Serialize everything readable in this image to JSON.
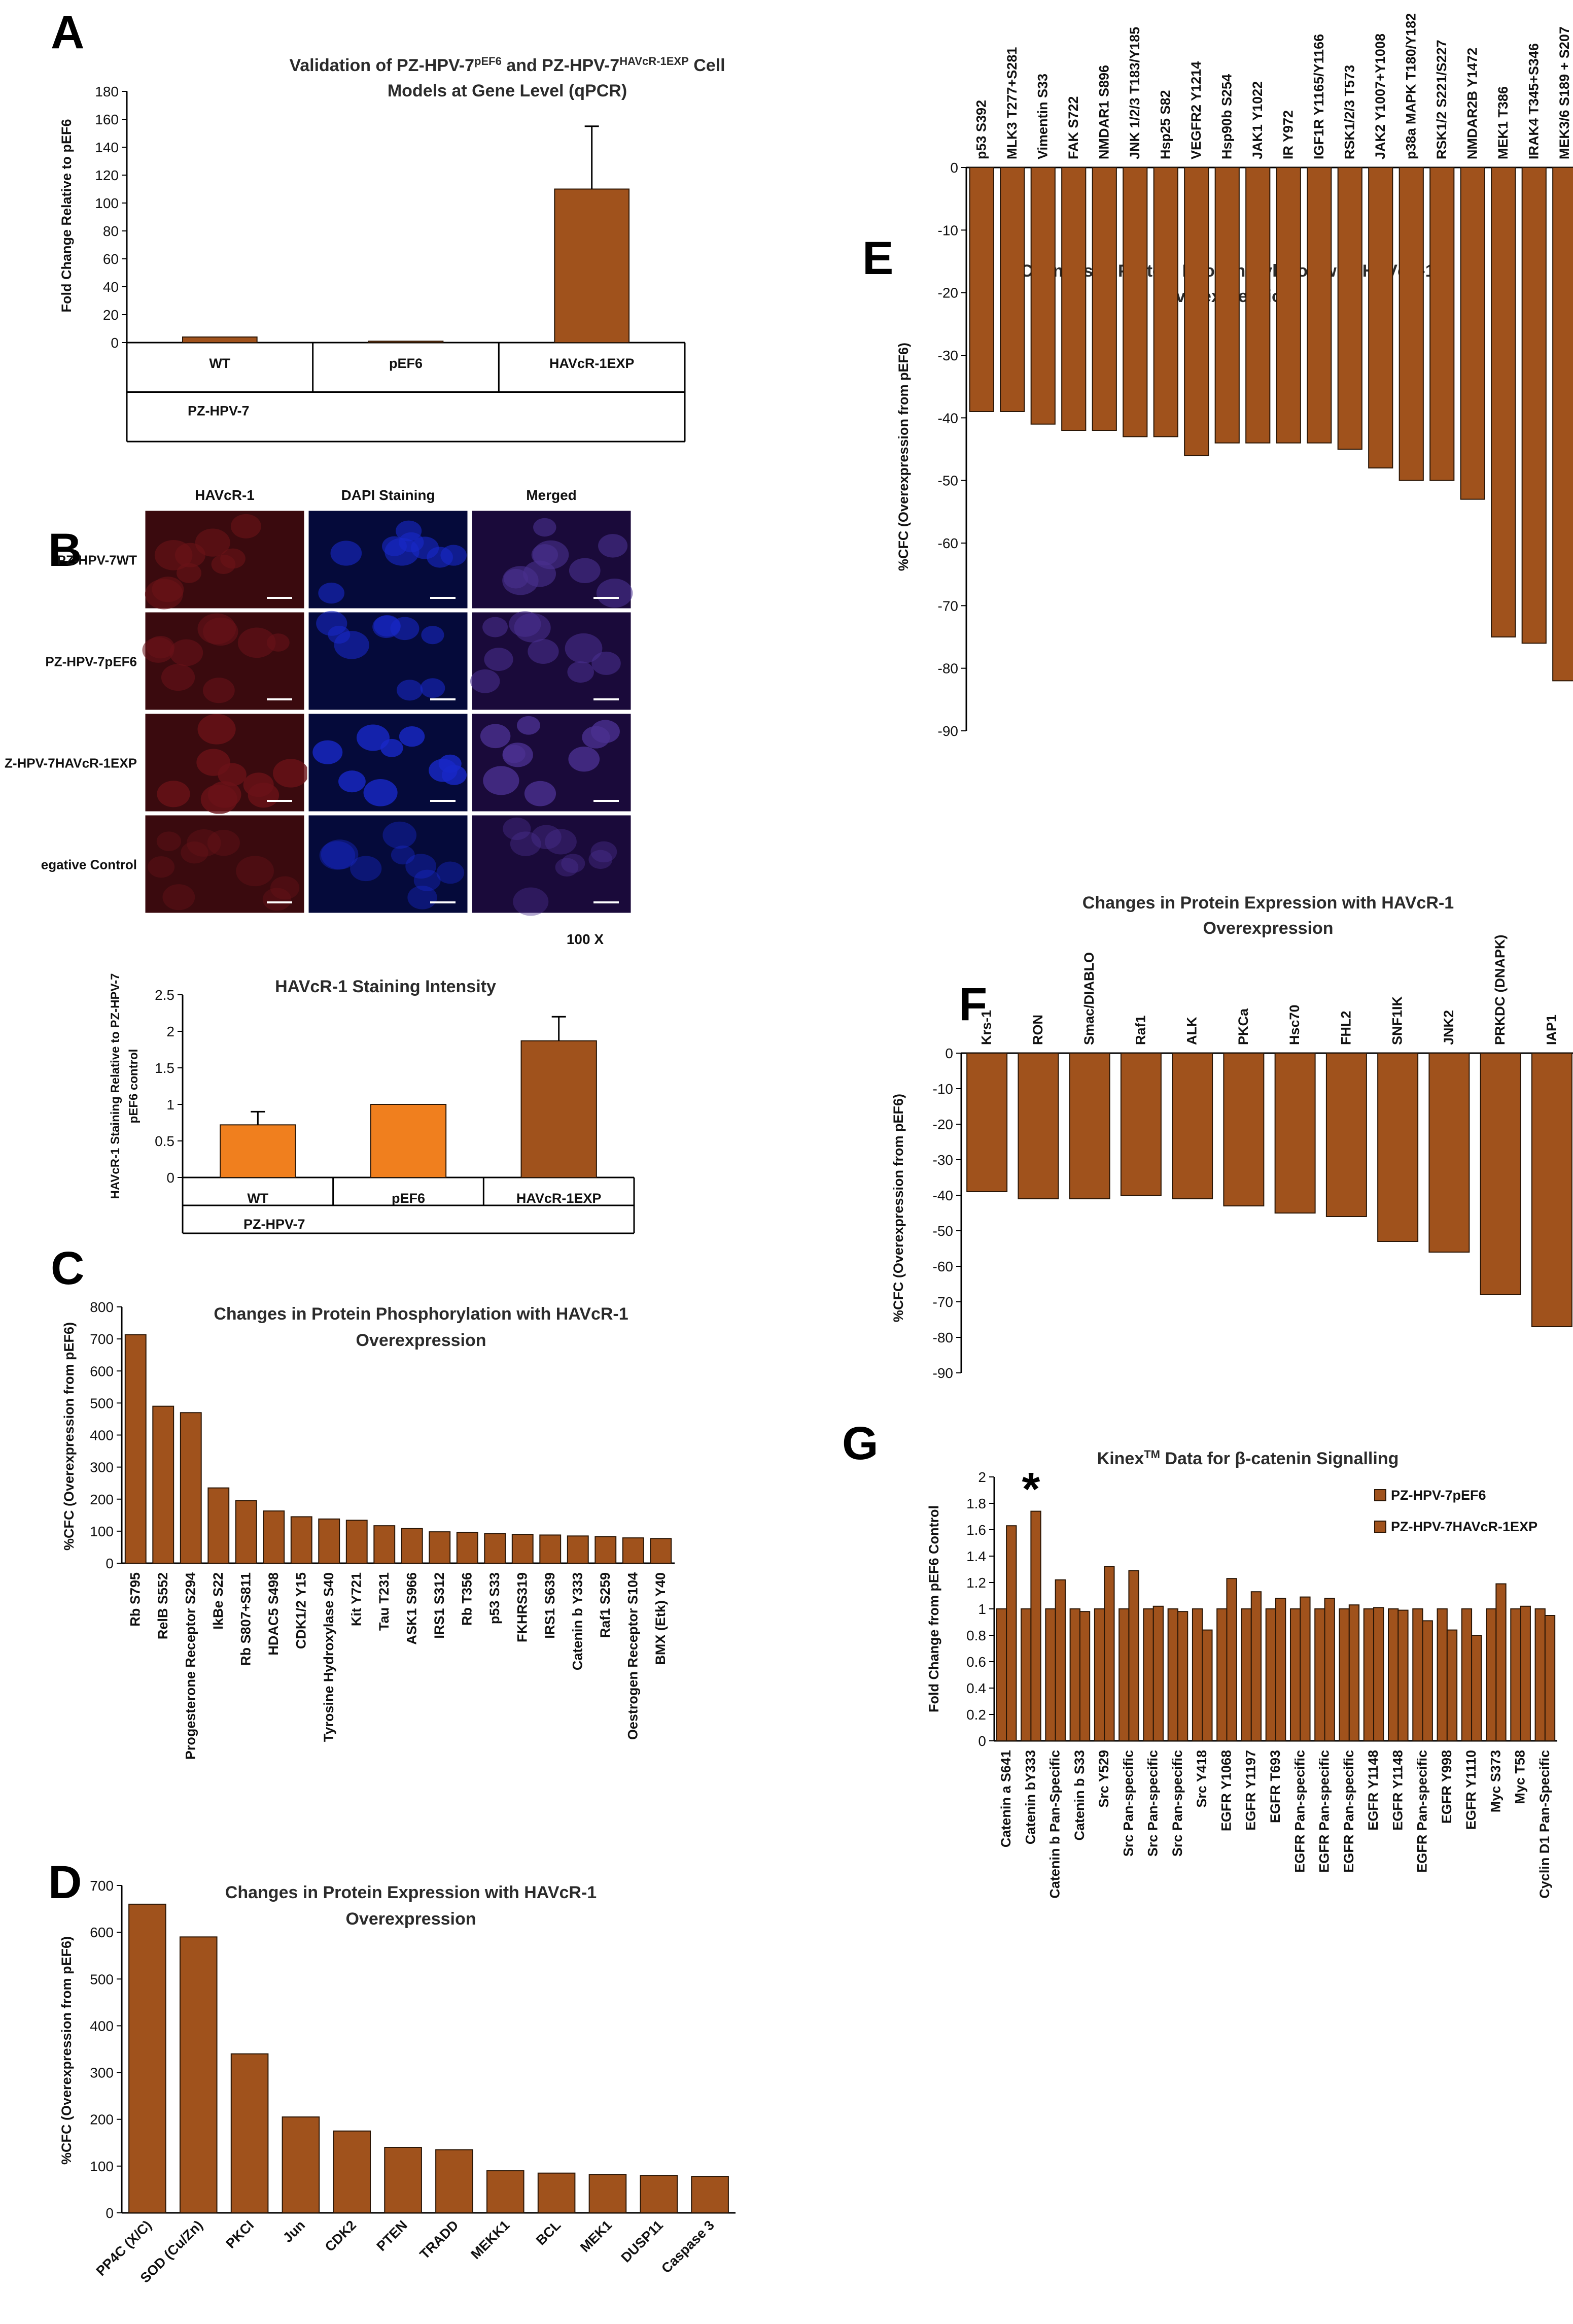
{
  "figure_labels": [
    "A",
    "B",
    "C",
    "D",
    "E",
    "F",
    "G"
  ],
  "colors": {
    "bar": "#a0521c",
    "bar_light": "#f07f1e",
    "edge": "#2a1606"
  },
  "micro": {
    "columns": [
      "HAVcR-1",
      "DAPI Staining",
      "Merged"
    ],
    "rows": [
      "PZ-HPV-7WT",
      "PZ-HPV-7pEF6",
      "Z-HPV-7HAVcR-1EXP",
      "egative Control"
    ],
    "magnification": "100 X"
  },
  "chart_data": [
    {
      "id": "A",
      "type": "bar",
      "title": [
        "Validation of PZ-HPV-7pEF6 and PZ-HPV-7HAVcR-1EXP Cell",
        "Models at Gene Level (qPCR)"
      ],
      "categories": [
        "WT",
        "pEF6",
        "HAVcR-1EXP"
      ],
      "group_label": "PZ-HPV-7",
      "values": [
        4,
        1,
        110
      ],
      "errors": [
        0,
        0,
        45
      ],
      "ylabel": "Fold Change Relative to pEF6",
      "ylim": [
        0,
        180
      ],
      "yticks": [
        0,
        20,
        40,
        60,
        80,
        100,
        120,
        140,
        160,
        180
      ]
    },
    {
      "id": "B",
      "type": "bar",
      "title": [
        "HAVcR-1 Staining Intensity"
      ],
      "categories": [
        "WT",
        "pEF6",
        "HAVcR-1EXP"
      ],
      "group_label": "PZ-HPV-7",
      "values": [
        0.72,
        1.0,
        1.87
      ],
      "errors": [
        0.18,
        0,
        0.33
      ],
      "ylabel": [
        "HAVcR-1 Staining Relative to PZ-HPV-7",
        "pEF6 control"
      ],
      "ylim": [
        0,
        2.5
      ],
      "yticks": [
        0,
        0.5,
        1,
        1.5,
        2,
        2.5
      ]
    },
    {
      "id": "C",
      "type": "bar",
      "title": [
        "Changes in Protein Phosphorylation with HAVcR-1",
        "Overexpression"
      ],
      "categories": [
        "Rb S795",
        "RelB S552",
        "Progesterone Receptor S294",
        "IkBe S22",
        "Rb S807+S811",
        "HDAC5 S498",
        "CDK1/2 Y15",
        "Tyrosine Hydroxylase S40",
        "Kit Y721",
        "Tau T231",
        "ASK1 S966",
        "IRS1 S312",
        "Rb T356",
        "p53 S33",
        "FKHRS319",
        "IRS1 S639",
        "Catenin b Y333",
        "Raf1 S259",
        "Oestrogen Receptor S104",
        "BMX (Etk) Y40"
      ],
      "values": [
        713,
        490,
        470,
        235,
        195,
        163,
        145,
        138,
        134,
        117,
        108,
        98,
        96,
        92,
        90,
        88,
        85,
        83,
        79,
        77
      ],
      "ylabel": "%CFC (Overexpression from pEF6)",
      "ylim": [
        0,
        800
      ],
      "yticks": [
        0,
        100,
        200,
        300,
        400,
        500,
        600,
        700,
        800
      ]
    },
    {
      "id": "D",
      "type": "bar",
      "title": [
        "Changes in Protein Expression with HAVcR-1",
        "Overexpression"
      ],
      "categories": [
        "PP4C (X/C)",
        "SOD (Cu/Zn)",
        "PKCI",
        "Jun",
        "CDK2",
        "PTEN",
        "TRADD",
        "MEKK1",
        "BCL",
        "MEK1",
        "DUSP11",
        "Caspase 3"
      ],
      "values": [
        660,
        590,
        340,
        205,
        175,
        140,
        135,
        90,
        85,
        82,
        80,
        78
      ],
      "ylabel": "%CFC (Overexpression from pEF6)",
      "ylim": [
        0,
        700
      ],
      "yticks": [
        0,
        100,
        200,
        300,
        400,
        500,
        600,
        700
      ]
    },
    {
      "id": "E",
      "type": "bar",
      "title": [
        "Changes in Protein Phosphorylation with HAVcR-1",
        "Overexpression"
      ],
      "categories": [
        "p53 S392",
        "MLK3 T277+S281",
        "Vimentin S33",
        "FAK S722",
        "NMDAR1 S896",
        "JNK 1/2/3 T183/Y185",
        "Hsp25 S82",
        "VEGFR2 Y1214",
        "Hsp90b S254",
        "JAK1 Y1022",
        "IR Y972",
        "IGF1R Y1165/Y1166",
        "RSK1/2/3 T573",
        "JAK2 Y1007+Y1008",
        "p38a MAPK T180/Y182",
        "RSK1/2 S221/S227",
        "NMDAR2B Y1472",
        "MEK1 T386",
        "IRAK4 T345+S346",
        "MEK3/6 S189 + S207"
      ],
      "values": [
        -39,
        -39,
        -41,
        -42,
        -42,
        -43,
        -43,
        -46,
        -44,
        -44,
        -44,
        -44,
        -45,
        -48,
        -50,
        -50,
        -53,
        -75,
        -76,
        -82
      ],
      "ylabel": "%CFC (Overexpression from pEF6)",
      "ylim": [
        -90,
        0
      ],
      "yticks": [
        0,
        -10,
        -20,
        -30,
        -40,
        -50,
        -60,
        -70,
        -80,
        -90
      ]
    },
    {
      "id": "F",
      "type": "bar",
      "title": [
        "Changes in Protein Expression with HAVcR-1",
        "Overexpression"
      ],
      "categories": [
        "Krs-1",
        "RON",
        "Smac/DIABLO",
        "Raf1",
        "ALK",
        "PKCa",
        "Hsc70",
        "FHL2",
        "SNF1IK",
        "JNK2",
        "PRKDC (DNAPK)",
        "IAP1"
      ],
      "values": [
        -39,
        -41,
        -41,
        -40,
        -41,
        -43,
        -45,
        -46,
        -53,
        -56,
        -68,
        -77
      ],
      "ylabel": "%CFC (Overexpression from pEF6)",
      "ylim": [
        -90,
        0
      ],
      "yticks": [
        0,
        -10,
        -20,
        -30,
        -40,
        -50,
        -60,
        -70,
        -80,
        -90
      ]
    },
    {
      "id": "G",
      "type": "bar",
      "title": [
        "KinexTM Data for β-catenin Signalling"
      ],
      "categories": [
        "Catenin a S641",
        "Catenin bY333",
        "Catenin b Pan-Specific",
        "Catenin b S33",
        "Src Y529",
        "Src Pan-specific",
        "Src Pan-specific",
        "Src Pan-specific",
        "Src Y418",
        "EGFR Y1068",
        "EGFR Y1197",
        "EGFR T693",
        "EGFR Pan-specific",
        "EGFR Pan-specific",
        "EGFR Pan-specific",
        "EGFR Y1148",
        "EGFR Y1148",
        "EGFR Pan-specific",
        "EGFR Y998",
        "EGFR Y1110",
        "Myc S373",
        "Myc T58",
        "Cyclin D1 Pan-Specific"
      ],
      "series": [
        {
          "name": "PZ-HPV-7pEF6",
          "values": [
            1,
            1,
            1,
            1,
            1,
            1,
            1,
            1,
            1,
            1,
            1,
            1,
            1,
            1,
            1,
            1,
            1,
            1,
            1,
            1,
            1,
            1,
            1
          ]
        },
        {
          "name": "PZ-HPV-7HAVcR-1EXP",
          "values": [
            1.63,
            1.74,
            1.22,
            0.98,
            1.32,
            1.29,
            1.02,
            0.98,
            0.84,
            1.23,
            1.13,
            1.08,
            1.09,
            1.08,
            1.03,
            1.01,
            0.99,
            0.91,
            0.84,
            0.8,
            1.19,
            1.02,
            0.95
          ]
        }
      ],
      "annotation": "*",
      "ylabel": "Fold Change from pEF6 Control",
      "ylim": [
        0,
        2
      ],
      "yticks": [
        0,
        0.2,
        0.4,
        0.6,
        0.8,
        1,
        1.2,
        1.4,
        1.6,
        1.8,
        2
      ]
    }
  ]
}
